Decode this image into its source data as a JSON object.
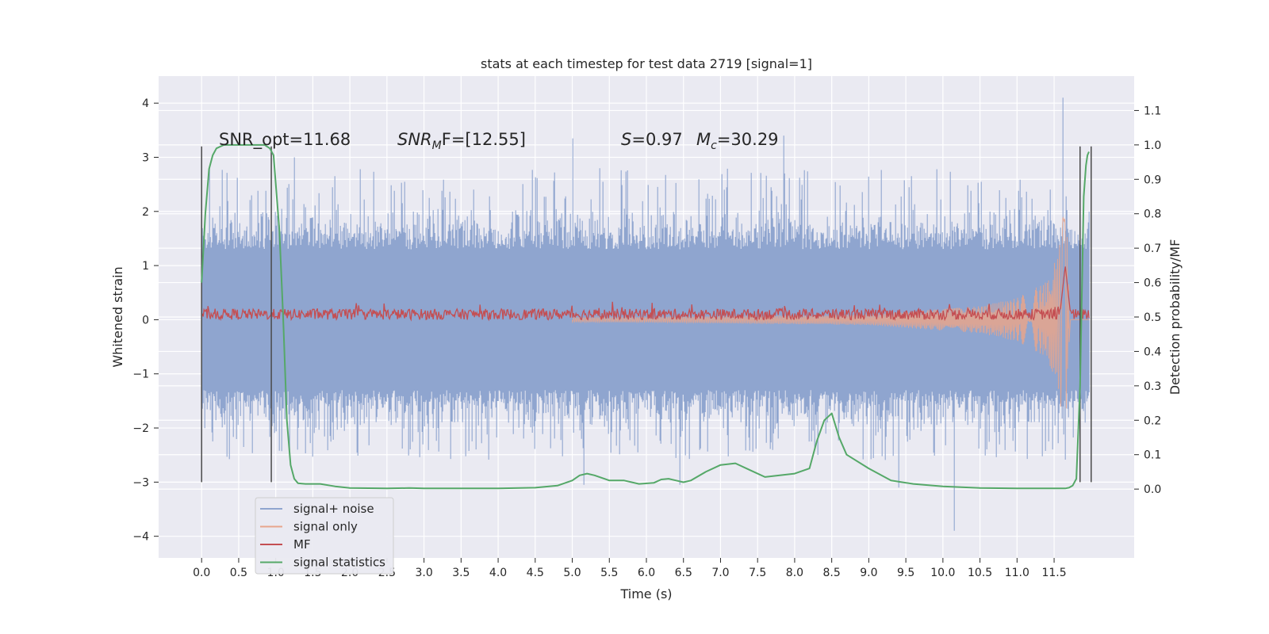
{
  "chart_data": {
    "type": "line",
    "title": "stats at each timestep for test data 2719 [signal=1]",
    "xlabel": "Time (s)",
    "ylabel_left": "Whitened strain",
    "ylabel_right": "Detection probability/MF",
    "xlim": [
      -0.58,
      12.58
    ],
    "ylim_left": [
      -4.4,
      4.5
    ],
    "ylim_right": [
      -0.2,
      1.2
    ],
    "x_ticks": [
      "0.0",
      "0.5",
      "1.0",
      "1.5",
      "2.0",
      "2.5",
      "3.0",
      "3.5",
      "4.0",
      "4.5",
      "5.0",
      "5.5",
      "6.0",
      "6.5",
      "7.0",
      "7.5",
      "8.0",
      "8.5",
      "9.0",
      "9.5",
      "10.0",
      "10.5",
      "11.0",
      "11.5"
    ],
    "y_ticks_left": [
      "−4",
      "−3",
      "−2",
      "−1",
      "0",
      "1",
      "2",
      "3",
      "4"
    ],
    "y_ticks_right": [
      "0.0",
      "0.1",
      "0.2",
      "0.3",
      "0.4",
      "0.5",
      "0.6",
      "0.7",
      "0.8",
      "0.9",
      "1.0",
      "1.1"
    ],
    "grid": true,
    "legend_position": "lower-left",
    "annotations": {
      "snr_opt": "SNR_opt=11.68",
      "snr_mf": "SNR",
      "snr_mf_sub": "M",
      "snr_mf_rest": "F=[12.55]",
      "s_label": "S",
      "s_value": "=0.97",
      "mc_label": "M",
      "mc_sub": "c",
      "mc_value": "=30.29"
    },
    "window_markers": [
      0.0,
      0.94,
      11.85,
      12.0
    ],
    "series": [
      {
        "name": "signal+ noise",
        "color": "#8fa5cf",
        "axis": "left",
        "x_range": [
          0.0,
          11.98
        ],
        "typical_band": [
          -1.3,
          1.3
        ],
        "spike_peaks": [
          [
            0.1,
            2.8
          ],
          [
            1.25,
            3.0
          ],
          [
            5.0,
            3.35
          ],
          [
            7.85,
            3.4
          ],
          [
            11.62,
            4.1
          ],
          [
            10.15,
            -3.9
          ],
          [
            9.4,
            -3.1
          ],
          [
            6.45,
            -3.05
          ],
          [
            5.15,
            -3.05
          ]
        ]
      },
      {
        "name": "signal only",
        "color": "#e8a58c",
        "axis": "left",
        "x_range": [
          0.0,
          11.98
        ],
        "envelope": [
          [
            0.0,
            0.02
          ],
          [
            6.0,
            0.05
          ],
          [
            9.0,
            0.1
          ],
          [
            10.5,
            0.25
          ],
          [
            11.0,
            0.4
          ],
          [
            11.4,
            0.7
          ],
          [
            11.55,
            1.2
          ],
          [
            11.63,
            2.0
          ],
          [
            11.68,
            1.5
          ],
          [
            11.72,
            0.0
          ]
        ]
      },
      {
        "name": "MF",
        "color": "#c44e52",
        "axis": "left",
        "x_range": [
          0.0,
          11.98
        ],
        "baseline": 0.1,
        "noise_amp": 0.1,
        "peak": [
          11.65,
          1.0
        ]
      },
      {
        "name": "signal statistics",
        "color": "#55a868",
        "axis": "right",
        "x": [
          0.0,
          0.05,
          0.1,
          0.15,
          0.2,
          0.3,
          0.5,
          0.7,
          0.85,
          0.92,
          0.97,
          1.05,
          1.1,
          1.15,
          1.2,
          1.25,
          1.3,
          1.4,
          1.6,
          1.8,
          2.0,
          2.5,
          2.8,
          3.0,
          3.5,
          4.0,
          4.5,
          4.8,
          5.0,
          5.1,
          5.2,
          5.3,
          5.5,
          5.7,
          5.9,
          6.1,
          6.2,
          6.3,
          6.4,
          6.5,
          6.6,
          6.8,
          7.0,
          7.2,
          7.4,
          7.6,
          7.8,
          8.0,
          8.2,
          8.3,
          8.4,
          8.5,
          8.6,
          8.7,
          9.0,
          9.3,
          9.6,
          10.0,
          10.5,
          11.0,
          11.5,
          11.6,
          11.65,
          11.7,
          11.75,
          11.8,
          11.85,
          11.9,
          11.93,
          11.95,
          11.97
        ],
        "y": [
          0.6,
          0.8,
          0.93,
          0.97,
          0.99,
          1.0,
          1.0,
          1.0,
          1.0,
          0.99,
          0.97,
          0.75,
          0.5,
          0.2,
          0.07,
          0.03,
          0.017,
          0.015,
          0.015,
          0.008,
          0.003,
          0.002,
          0.003,
          0.002,
          0.002,
          0.002,
          0.004,
          0.01,
          0.025,
          0.04,
          0.045,
          0.04,
          0.025,
          0.025,
          0.015,
          0.018,
          0.028,
          0.03,
          0.025,
          0.02,
          0.025,
          0.05,
          0.07,
          0.075,
          0.055,
          0.035,
          0.04,
          0.045,
          0.06,
          0.14,
          0.2,
          0.22,
          0.15,
          0.1,
          0.06,
          0.025,
          0.015,
          0.008,
          0.003,
          0.002,
          0.002,
          0.002,
          0.002,
          0.004,
          0.01,
          0.03,
          0.3,
          0.85,
          0.94,
          0.97,
          0.98
        ]
      }
    ]
  }
}
